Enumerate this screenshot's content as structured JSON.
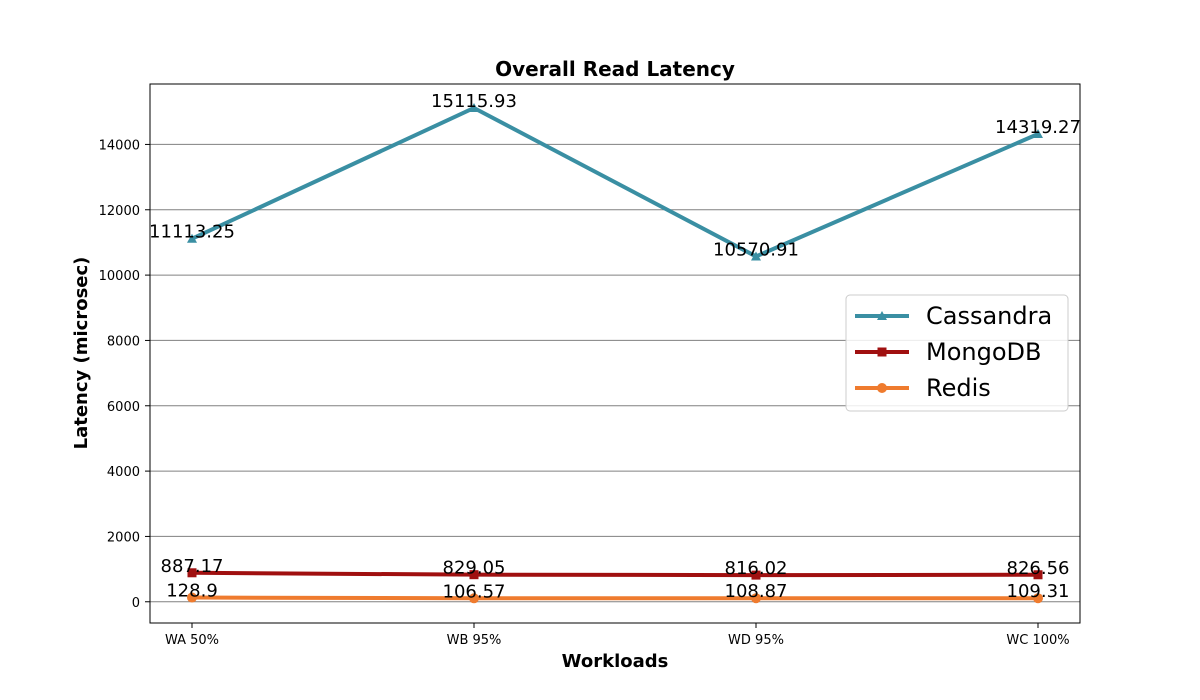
{
  "chart_data": {
    "type": "line",
    "title": "Overall Read Latency",
    "xlabel": "Workloads",
    "ylabel": "Latency (microsec)",
    "categories": [
      "WA 50%",
      "WB 95%",
      "WD 95%",
      "WC 100%"
    ],
    "ylim": [
      -650,
      15850
    ],
    "yticks": [
      0,
      2000,
      4000,
      6000,
      8000,
      10000,
      12000,
      14000
    ],
    "grid": "horizontal",
    "legend_position": "center-right",
    "series": [
      {
        "name": "Cassandra",
        "values": [
          11113.25,
          15115.93,
          10570.91,
          14319.27
        ],
        "labels": [
          "11113.25",
          "15115.93",
          "10570.91",
          "14319.27"
        ],
        "color": "#3a8fa3",
        "marker": "triangle"
      },
      {
        "name": "MongoDB",
        "values": [
          887.17,
          829.05,
          816.02,
          826.56
        ],
        "labels": [
          "887.17",
          "829.05",
          "816.02",
          "826.56"
        ],
        "color": "#a01010",
        "marker": "square"
      },
      {
        "name": "Redis",
        "values": [
          128.9,
          106.57,
          108.87,
          109.31
        ],
        "labels": [
          "128.9",
          "106.57",
          "108.87",
          "109.31"
        ],
        "color": "#ef7b2e",
        "marker": "circle"
      }
    ]
  }
}
